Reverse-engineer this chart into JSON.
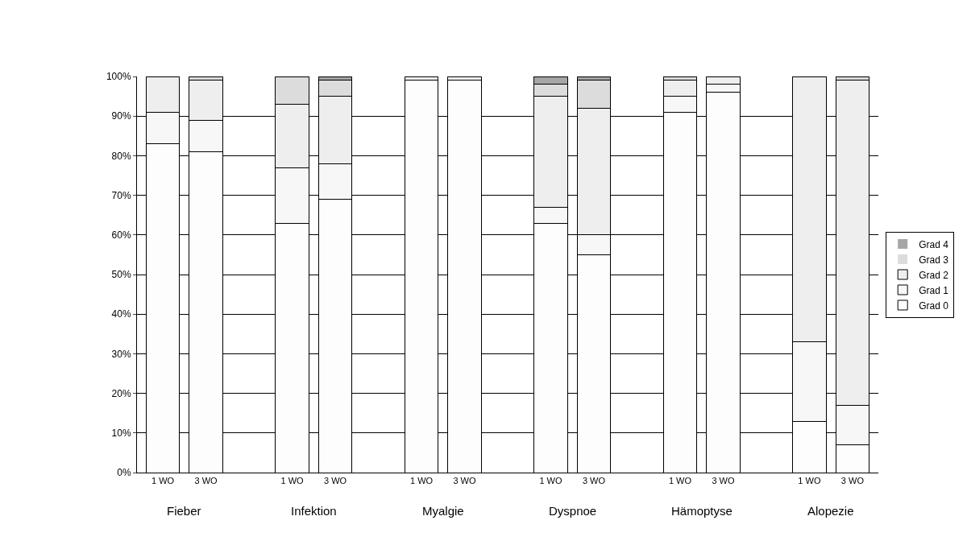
{
  "chart_data": {
    "type": "bar",
    "stacked": true,
    "categories": [
      "1 WO",
      "3 WO",
      null,
      "1 WO",
      "3 WO",
      null,
      "1 WO",
      "3 WO",
      null,
      "1 WO",
      "3 WO",
      null,
      "1 WO",
      "3 WO",
      null,
      "1 WO",
      "3 WO"
    ],
    "series": [
      {
        "name": "Grad 0",
        "color": "#fdfdfd",
        "values": [
          83,
          81,
          null,
          63,
          69,
          null,
          99,
          99,
          null,
          63,
          55,
          null,
          91,
          96,
          null,
          13,
          7
        ]
      },
      {
        "name": "Grad 1",
        "color": "#f7f7f7",
        "values": [
          8,
          8,
          null,
          14,
          9,
          null,
          1,
          1,
          null,
          4,
          5,
          null,
          4,
          2,
          null,
          20,
          10
        ]
      },
      {
        "name": "Grad 2",
        "color": "#eeeeee",
        "values": [
          9,
          10,
          null,
          16,
          17,
          null,
          0,
          0,
          null,
          28,
          32,
          null,
          4,
          2,
          null,
          67,
          82
        ]
      },
      {
        "name": "Grad 3",
        "color": "#dcdcdc",
        "values": [
          0,
          1,
          null,
          7,
          4,
          null,
          0,
          0,
          null,
          3,
          7,
          null,
          1,
          0,
          null,
          0,
          1
        ]
      },
      {
        "name": "Grad 4",
        "color": "#a6a6a6",
        "values": [
          0,
          0,
          null,
          0,
          1,
          null,
          0,
          0,
          null,
          2,
          1,
          null,
          0,
          0,
          null,
          0,
          0
        ]
      }
    ],
    "annotations": [
      "Fieber",
      "Infektion",
      "Myalgie",
      "Dyspnoe",
      "Hämoptyse",
      "Alopezie"
    ],
    "ylim": [
      0,
      100
    ],
    "yticks": [
      {
        "value": 0,
        "label": "0%"
      },
      {
        "value": 10,
        "label": "10%"
      },
      {
        "value": 20,
        "label": "20%"
      },
      {
        "value": 30,
        "label": "30%"
      },
      {
        "value": 40,
        "label": "40%"
      },
      {
        "value": 50,
        "label": "50%"
      },
      {
        "value": 60,
        "label": "60%"
      },
      {
        "value": 70,
        "label": "70%"
      },
      {
        "value": 80,
        "label": "80%"
      },
      {
        "value": 90,
        "label": "90%"
      },
      {
        "value": 100,
        "label": "100%"
      }
    ],
    "grid": "y",
    "legend": "right"
  }
}
